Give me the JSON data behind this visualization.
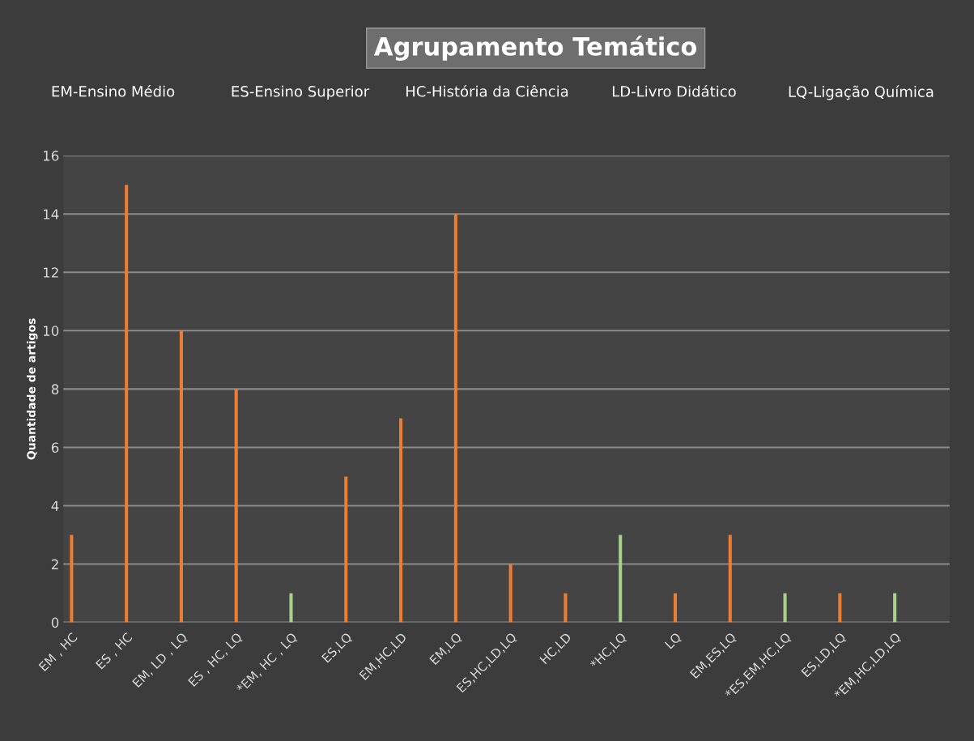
{
  "chart_data": {
    "type": "bar",
    "title": "Agrupamento Temático",
    "annotations": [
      "EM-Ensino Médio",
      "ES-Ensino Superior",
      "HC-História da Ciência",
      "LD-Livro Didático",
      "LQ-Ligação Química"
    ],
    "ylabel": "Quantidade de artigos",
    "categories": [
      "EM , HC",
      "ES , HC",
      "EM, LD , LQ",
      "ES , HC, LQ",
      "*EM, HC , LQ",
      "ES,LQ",
      "EM,HC,LD",
      "EM,LQ",
      "ES,HC,LD,LQ",
      "HC,LD",
      "*HC,LQ",
      "LQ",
      "EM,ES,LQ",
      "*ES,EM,HC,LQ",
      "ES,LD,LQ",
      "*EM,HC,LD,LQ"
    ],
    "values": [
      3,
      15,
      10,
      8,
      1,
      5,
      7,
      14,
      2,
      1,
      3,
      1,
      3,
      1,
      1,
      1
    ],
    "colors": [
      "#ed7d31",
      "#ed7d31",
      "#ed7d31",
      "#ed7d31",
      "#a9d18e",
      "#ed7d31",
      "#ed7d31",
      "#ed7d31",
      "#ed7d31",
      "#ed7d31",
      "#a9d18e",
      "#ed7d31",
      "#ed7d31",
      "#a9d18e",
      "#ed7d31",
      "#a9d18e"
    ],
    "ylim": [
      0,
      16
    ],
    "yticks": [
      0,
      2,
      4,
      6,
      8,
      10,
      12,
      14,
      16
    ],
    "grid": "y"
  }
}
